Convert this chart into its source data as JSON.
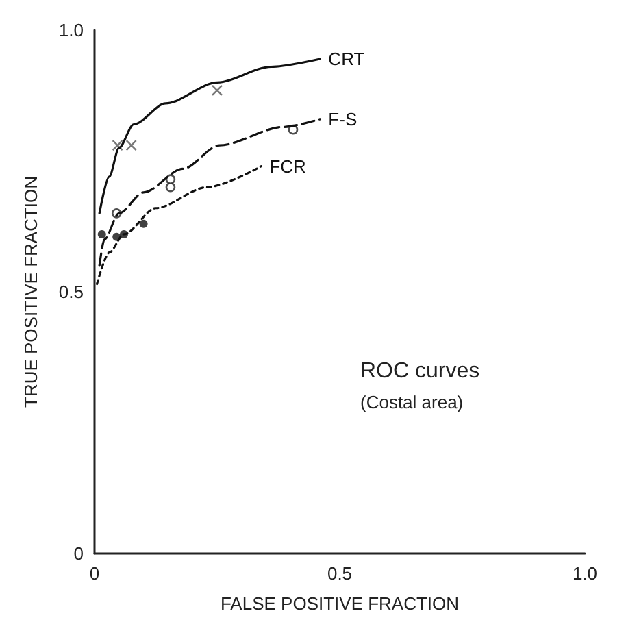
{
  "chart_data": {
    "type": "line",
    "xlabel": "FALSE POSITIVE FRACTION",
    "ylabel": "TRUE POSITIVE FRACTION",
    "xlim": [
      0,
      1
    ],
    "ylim": [
      0,
      1
    ],
    "xticks": [
      0,
      0.5,
      {
        "value": 1,
        "label": "1.0"
      }
    ],
    "yticks": [
      0,
      0.5,
      {
        "value": 1,
        "label": "1.0"
      }
    ],
    "grid": false,
    "legend": false,
    "annotations": [
      "ROC curves",
      "(Costal area)"
    ],
    "series": [
      {
        "name": "CRT",
        "color": "#111111",
        "line_style": "solid",
        "marker": "none",
        "x": [
          0.01,
          0.03,
          0.05,
          0.08,
          0.145,
          0.25,
          0.36,
          0.46
        ],
        "values": [
          0.65,
          0.72,
          0.775,
          0.82,
          0.86,
          0.9,
          0.93,
          0.945
        ]
      },
      {
        "name": "F-S",
        "color": "#111111",
        "line_style": "dashed",
        "marker": "none",
        "x": [
          0.01,
          0.02,
          0.05,
          0.1,
          0.18,
          0.255,
          0.385,
          0.46
        ],
        "values": [
          0.55,
          0.6,
          0.65,
          0.69,
          0.735,
          0.78,
          0.815,
          0.83
        ]
      },
      {
        "name": "FCR",
        "color": "#111111",
        "line_style": "dotted",
        "marker": "none",
        "x": [
          0.005,
          0.03,
          0.06,
          0.125,
          0.23,
          0.34
        ],
        "values": [
          0.515,
          0.575,
          0.61,
          0.66,
          0.7,
          0.74
        ]
      },
      {
        "type": "scatter",
        "color": "#555555",
        "marker": "cross",
        "x": [
          0.047,
          0.075,
          0.25
        ],
        "values": [
          0.78,
          0.78,
          0.885
        ]
      },
      {
        "type": "scatter",
        "color": "#222222",
        "marker": "circle",
        "x": [
          0.045,
          0.155,
          0.155,
          0.405
        ],
        "values": [
          0.65,
          0.7,
          0.715,
          0.81
        ]
      },
      {
        "type": "scatter",
        "color": "#111111",
        "marker": "filled-circle",
        "x": [
          0.015,
          0.045,
          0.06,
          0.1
        ],
        "values": [
          0.61,
          0.605,
          0.61,
          0.63
        ]
      }
    ]
  }
}
